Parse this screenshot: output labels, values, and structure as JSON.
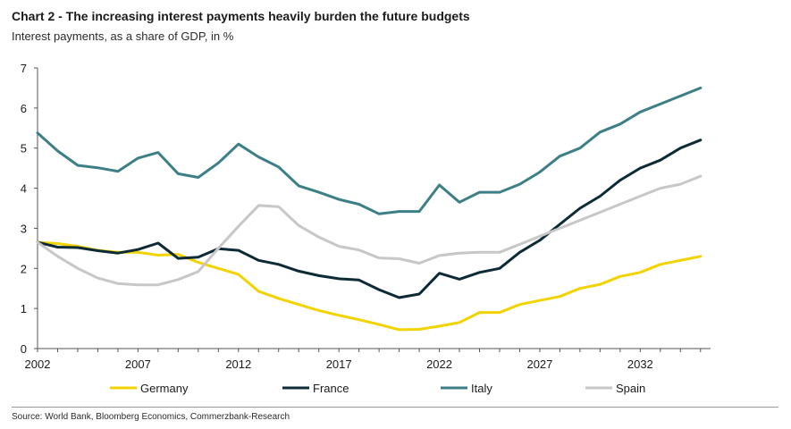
{
  "chart_data": {
    "type": "line",
    "title": "Chart 2 - The increasing interest payments heavily burden the future budgets",
    "subtitle": "Interest payments, as a share of GDP, in %",
    "source": "Source: World Bank, Bloomberg Economics, Commerzbank-Research",
    "xlabel": "",
    "ylabel": "",
    "xlim": [
      2002,
      2035.5
    ],
    "ylim": [
      0,
      7
    ],
    "y_ticks": [
      "0",
      "1",
      "2",
      "3",
      "4",
      "5",
      "6",
      "7"
    ],
    "x_ticks": [
      "2002",
      "2007",
      "2012",
      "2017",
      "2022",
      "2027",
      "2032"
    ],
    "grid": false,
    "legend_position": "bottom",
    "x": [
      2002,
      2003,
      2004,
      2005,
      2006,
      2007,
      2008,
      2009,
      2010,
      2011,
      2012,
      2013,
      2014,
      2015,
      2016,
      2017,
      2018,
      2019,
      2020,
      2021,
      2022,
      2023,
      2024,
      2025,
      2026,
      2027,
      2028,
      2029,
      2030,
      2031,
      2032,
      2033,
      2034,
      2035
    ],
    "series": [
      {
        "name": "Germany",
        "color": "#f2d300",
        "values": [
          2.65,
          2.62,
          2.55,
          2.45,
          2.4,
          2.4,
          2.33,
          2.35,
          2.15,
          2.0,
          1.85,
          1.43,
          1.25,
          1.1,
          0.95,
          0.83,
          0.72,
          0.6,
          0.47,
          0.48,
          0.56,
          0.65,
          0.9,
          0.9,
          1.1,
          1.2,
          1.3,
          1.5,
          1.6,
          1.8,
          1.9,
          2.1,
          2.2,
          2.3
        ]
      },
      {
        "name": "France",
        "color": "#0d2b36",
        "values": [
          2.65,
          2.53,
          2.52,
          2.44,
          2.38,
          2.47,
          2.63,
          2.25,
          2.28,
          2.49,
          2.45,
          2.2,
          2.1,
          1.93,
          1.82,
          1.74,
          1.71,
          1.47,
          1.27,
          1.36,
          1.88,
          1.73,
          1.9,
          2.0,
          2.4,
          2.7,
          3.1,
          3.5,
          3.8,
          4.2,
          4.5,
          4.7,
          5.0,
          5.2
        ]
      },
      {
        "name": "Italy",
        "color": "#3d7f86",
        "values": [
          5.38,
          4.93,
          4.57,
          4.51,
          4.42,
          4.75,
          4.89,
          4.36,
          4.27,
          4.63,
          5.1,
          4.78,
          4.53,
          4.06,
          3.9,
          3.72,
          3.6,
          3.36,
          3.42,
          3.42,
          4.08,
          3.65,
          3.9,
          3.9,
          4.1,
          4.4,
          4.8,
          5.0,
          5.4,
          5.6,
          5.9,
          6.1,
          6.3,
          6.5
        ]
      },
      {
        "name": "Spain",
        "color": "#c7c7c7",
        "values": [
          2.65,
          2.3,
          2.0,
          1.76,
          1.62,
          1.59,
          1.59,
          1.72,
          1.92,
          2.5,
          3.05,
          3.57,
          3.54,
          3.07,
          2.78,
          2.55,
          2.46,
          2.26,
          2.24,
          2.13,
          2.32,
          2.38,
          2.4,
          2.4,
          2.6,
          2.8,
          3.0,
          3.2,
          3.4,
          3.6,
          3.8,
          4.0,
          4.1,
          4.3
        ]
      }
    ]
  }
}
